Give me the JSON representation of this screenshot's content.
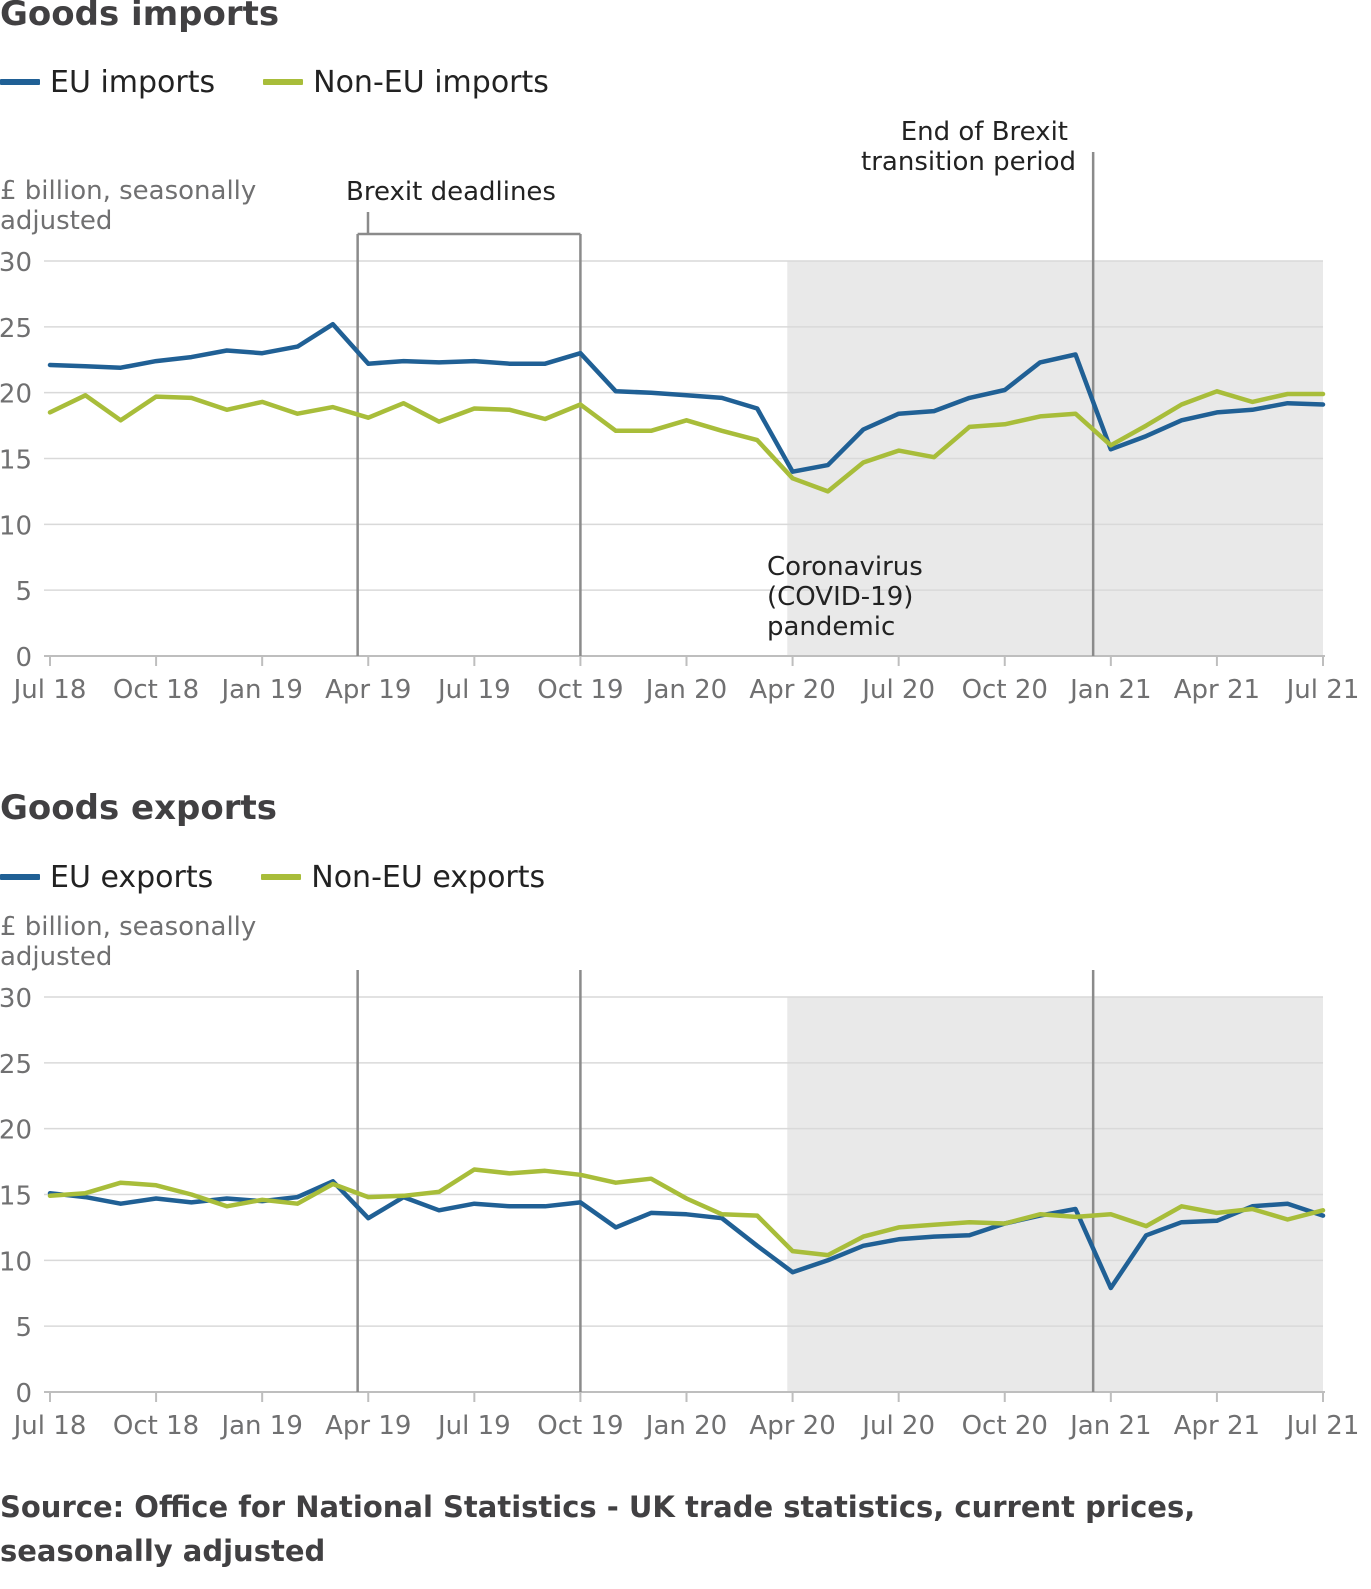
{
  "source": "Source: Office for National Statistics - UK trade statistics, current prices, seasonally adjusted",
  "colors": {
    "eu": "#206095",
    "non_eu": "#a8bd3a",
    "shade": "#e9e9e9",
    "annotation_line": "#8b8b8b",
    "grid": "#d9d9d9",
    "axis": "#bebebe"
  },
  "imports": {
    "title": "Goods imports",
    "legend": {
      "eu": "EU imports",
      "non_eu": "Non-EU imports"
    },
    "unit_label": "£ billion, seasonally adjusted",
    "annotations": {
      "brexit_deadlines": "Brexit deadlines",
      "transition": [
        "End of Brexit",
        "transition period"
      ],
      "pandemic": [
        "Coronavirus",
        "(COVID-19)",
        "pandemic"
      ]
    }
  },
  "exports": {
    "title": "Goods exports",
    "legend": {
      "eu": "EU exports",
      "non_eu": "Non-EU exports"
    },
    "unit_label": "£ billion, seasonally adjusted"
  },
  "chart_data": [
    {
      "type": "line",
      "title": "Goods imports",
      "ylabel": "£ billion, seasonally adjusted",
      "ylim": [
        0,
        30
      ],
      "yticks": [
        0,
        5,
        10,
        15,
        20,
        25,
        30
      ],
      "x": [
        "Jul 18",
        "Aug 18",
        "Sep 18",
        "Oct 18",
        "Nov 18",
        "Dec 18",
        "Jan 19",
        "Feb 19",
        "Mar 19",
        "Apr 19",
        "May 19",
        "Jun 19",
        "Jul 19",
        "Aug 19",
        "Sep 19",
        "Oct 19",
        "Nov 19",
        "Dec 19",
        "Jan 20",
        "Feb 20",
        "Mar 20",
        "Apr 20",
        "May 20",
        "Jun 20",
        "Jul 20",
        "Aug 20",
        "Sep 20",
        "Oct 20",
        "Nov 20",
        "Dec 20",
        "Jan 21",
        "Feb 21",
        "Mar 21",
        "Apr 21",
        "May 21",
        "Jun 21",
        "Jul 21"
      ],
      "xtick_labels": [
        "Jul 18",
        "Oct 18",
        "Jan 19",
        "Apr 19",
        "Jul 19",
        "Oct 19",
        "Jan 20",
        "Apr 20",
        "Jul 20",
        "Oct 20",
        "Jan 21",
        "Apr 21",
        "Jul 21"
      ],
      "series": [
        {
          "name": "EU imports",
          "values": [
            22.1,
            22.0,
            21.9,
            22.4,
            22.7,
            23.2,
            23.0,
            23.5,
            25.2,
            22.2,
            22.4,
            22.3,
            22.4,
            22.2,
            22.2,
            23.0,
            20.1,
            20.0,
            19.8,
            19.6,
            18.8,
            14.0,
            14.5,
            17.2,
            18.4,
            18.6,
            19.6,
            20.2,
            22.3,
            22.9,
            15.7,
            16.7,
            17.9,
            18.5,
            18.7,
            19.2,
            19.1
          ]
        },
        {
          "name": "Non-EU imports",
          "values": [
            18.5,
            19.8,
            17.9,
            19.7,
            19.6,
            18.7,
            19.3,
            18.4,
            18.9,
            18.1,
            19.2,
            17.8,
            18.8,
            18.7,
            18.0,
            19.1,
            17.1,
            17.1,
            17.9,
            17.1,
            16.4,
            13.5,
            12.5,
            14.7,
            15.6,
            15.1,
            17.4,
            17.6,
            18.2,
            18.4,
            16.0,
            17.5,
            19.1,
            20.1,
            19.3,
            19.9,
            19.9
          ]
        }
      ],
      "shaded_region": {
        "from": "Mar 20",
        "to": "Jul 21",
        "label": "Coronavirus (COVID-19) pandemic"
      },
      "vertical_lines": [
        {
          "at": "Mar 19",
          "label": "Brexit deadlines"
        },
        {
          "at": "Oct 19",
          "label": "Brexit deadlines"
        },
        {
          "at": "Dec 20",
          "label": "End of Brexit transition period"
        }
      ],
      "grid": true,
      "legend_position": "top-left"
    },
    {
      "type": "line",
      "title": "Goods exports",
      "ylabel": "£ billion, seasonally adjusted",
      "ylim": [
        0,
        30
      ],
      "yticks": [
        0,
        5,
        10,
        15,
        20,
        25,
        30
      ],
      "x": [
        "Jul 18",
        "Aug 18",
        "Sep 18",
        "Oct 18",
        "Nov 18",
        "Dec 18",
        "Jan 19",
        "Feb 19",
        "Mar 19",
        "Apr 19",
        "May 19",
        "Jun 19",
        "Jul 19",
        "Aug 19",
        "Sep 19",
        "Oct 19",
        "Nov 19",
        "Dec 19",
        "Jan 20",
        "Feb 20",
        "Mar 20",
        "Apr 20",
        "May 20",
        "Jun 20",
        "Jul 20",
        "Aug 20",
        "Sep 20",
        "Oct 20",
        "Nov 20",
        "Dec 20",
        "Jan 21",
        "Feb 21",
        "Mar 21",
        "Apr 21",
        "May 21",
        "Jun 21",
        "Jul 21"
      ],
      "xtick_labels": [
        "Jul 18",
        "Oct 18",
        "Jan 19",
        "Apr 19",
        "Jul 19",
        "Oct 19",
        "Jan 20",
        "Apr 20",
        "Jul 20",
        "Oct 20",
        "Jan 21",
        "Apr 21",
        "Jul 21"
      ],
      "series": [
        {
          "name": "EU exports",
          "values": [
            15.1,
            14.8,
            14.3,
            14.7,
            14.4,
            14.7,
            14.5,
            14.8,
            16.0,
            13.2,
            14.8,
            13.8,
            14.3,
            14.1,
            14.1,
            14.4,
            12.5,
            13.6,
            13.5,
            13.2,
            11.1,
            9.1,
            10.0,
            11.1,
            11.6,
            11.8,
            11.9,
            12.8,
            13.4,
            13.9,
            7.9,
            11.9,
            12.9,
            13.0,
            14.1,
            14.3,
            13.4
          ]
        },
        {
          "name": "Non-EU exports",
          "values": [
            14.9,
            15.1,
            15.9,
            15.7,
            15.0,
            14.1,
            14.6,
            14.3,
            15.8,
            14.8,
            14.9,
            15.2,
            16.9,
            16.6,
            16.8,
            16.5,
            15.9,
            16.2,
            14.7,
            13.5,
            13.4,
            10.7,
            10.4,
            11.8,
            12.5,
            12.7,
            12.9,
            12.8,
            13.5,
            13.3,
            13.5,
            12.6,
            14.1,
            13.6,
            13.9,
            13.1,
            13.8
          ]
        }
      ],
      "shaded_region": {
        "from": "Mar 20",
        "to": "Jul 21"
      },
      "vertical_lines": [
        {
          "at": "Mar 19"
        },
        {
          "at": "Oct 19"
        },
        {
          "at": "Dec 20"
        }
      ],
      "grid": true,
      "legend_position": "top-left"
    }
  ]
}
